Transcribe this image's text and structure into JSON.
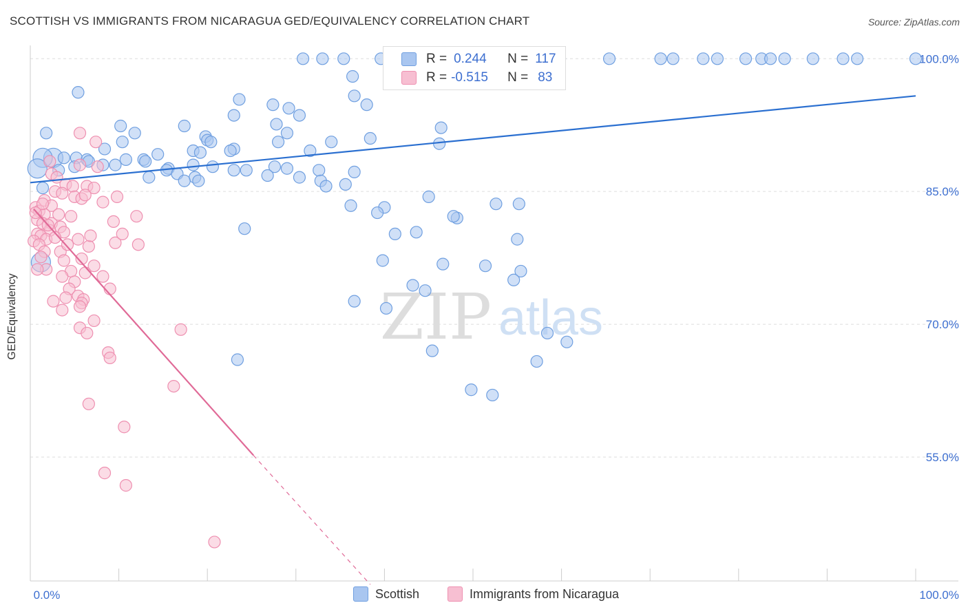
{
  "title": "SCOTTISH VS IMMIGRANTS FROM NICARAGUA GED/EQUIVALENCY CORRELATION CHART",
  "source": "Source: ZipAtlas.com",
  "watermark": {
    "zip": "ZIP",
    "atlas": "atlas"
  },
  "colors": {
    "blue_fill": "#a9c6f0",
    "blue_stroke": "#6f9fe0",
    "blue_line": "#2a6fd0",
    "pink_fill": "#f7bfd2",
    "pink_stroke": "#ee8fb0",
    "pink_line": "#e06a97",
    "tick_label": "#3d6fd0",
    "grid": "#dddddd"
  },
  "legend": {
    "scottish": "Scottish",
    "nicaragua": "Immigrants from Nicaragua"
  },
  "stats": {
    "blue": {
      "r_label": "R =",
      "r_value": "0.244",
      "n_label": "N =",
      "n_value": "117"
    },
    "pink": {
      "r_label": "R =",
      "r_value": "-0.515",
      "n_label": "N =",
      "n_value": "83"
    }
  },
  "chart_data": {
    "type": "scatter",
    "title": "SCOTTISH VS IMMIGRANTS FROM NICARAGUA GED/EQUIVALENCY CORRELATION CHART",
    "xlabel": "",
    "ylabel": "GED/Equivalency",
    "xlim": [
      0,
      100
    ],
    "ylim": [
      41,
      101.5
    ],
    "x_tick_labels": [
      "0.0%",
      "100.0%"
    ],
    "y_ticks": [
      55,
      70,
      85,
      100
    ],
    "y_tick_labels": [
      "55.0%",
      "70.0%",
      "85.0%",
      "100.0%"
    ],
    "grid": true,
    "series": [
      {
        "name": "Scottish",
        "color": "#6f9fe0",
        "trend": {
          "x": [
            0,
            100
          ],
          "y": [
            86.0,
            95.8
          ],
          "style": "solid"
        },
        "points": [
          [
            30.8,
            100.0
          ],
          [
            33.0,
            100.0
          ],
          [
            35.4,
            100.0
          ],
          [
            39.6,
            100.0
          ],
          [
            42.2,
            100.0
          ],
          [
            49.8,
            100.0
          ],
          [
            51.6,
            100.0
          ],
          [
            54.0,
            100.0
          ],
          [
            59.8,
            100.0
          ],
          [
            65.4,
            100.0
          ],
          [
            71.2,
            100.0
          ],
          [
            72.6,
            100.0
          ],
          [
            76.0,
            100.0
          ],
          [
            77.6,
            100.0
          ],
          [
            80.8,
            100.0
          ],
          [
            82.6,
            100.0
          ],
          [
            83.6,
            100.0
          ],
          [
            85.2,
            100.0
          ],
          [
            88.4,
            100.0
          ],
          [
            91.8,
            100.0
          ],
          [
            93.4,
            100.0
          ],
          [
            100.0,
            100.0
          ],
          [
            36.4,
            98.0
          ],
          [
            5.4,
            96.2
          ],
          [
            36.6,
            95.8
          ],
          [
            23.6,
            95.4
          ],
          [
            27.4,
            94.8
          ],
          [
            38.0,
            94.8
          ],
          [
            29.2,
            94.4
          ],
          [
            23.0,
            93.6
          ],
          [
            30.4,
            93.6
          ],
          [
            10.2,
            92.4
          ],
          [
            1.8,
            91.6
          ],
          [
            27.8,
            92.6
          ],
          [
            17.4,
            92.4
          ],
          [
            46.4,
            92.2
          ],
          [
            29.0,
            91.6
          ],
          [
            11.8,
            91.6
          ],
          [
            19.8,
            91.2
          ],
          [
            10.4,
            90.6
          ],
          [
            28.0,
            90.6
          ],
          [
            34.0,
            90.6
          ],
          [
            38.4,
            91.0
          ],
          [
            20.0,
            90.8
          ],
          [
            20.4,
            90.6
          ],
          [
            46.2,
            90.4
          ],
          [
            23.0,
            89.8
          ],
          [
            22.6,
            89.6
          ],
          [
            18.4,
            89.6
          ],
          [
            31.6,
            89.6
          ],
          [
            19.2,
            89.4
          ],
          [
            8.4,
            89.8
          ],
          [
            2.6,
            88.8
          ],
          [
            1.4,
            88.8
          ],
          [
            14.4,
            89.2
          ],
          [
            3.8,
            88.8
          ],
          [
            5.2,
            88.8
          ],
          [
            10.8,
            88.6
          ],
          [
            12.8,
            88.6
          ],
          [
            13.0,
            88.4
          ],
          [
            6.4,
            88.6
          ],
          [
            6.6,
            88.4
          ],
          [
            8.2,
            88.0
          ],
          [
            9.6,
            88.0
          ],
          [
            18.4,
            88.0
          ],
          [
            20.6,
            87.8
          ],
          [
            15.6,
            87.6
          ],
          [
            27.6,
            87.8
          ],
          [
            29.0,
            87.6
          ],
          [
            32.6,
            87.4
          ],
          [
            36.6,
            87.2
          ],
          [
            15.4,
            87.4
          ],
          [
            5.0,
            87.8
          ],
          [
            0.8,
            87.6
          ],
          [
            3.2,
            87.4
          ],
          [
            23.0,
            87.4
          ],
          [
            24.4,
            87.4
          ],
          [
            16.6,
            87.0
          ],
          [
            26.8,
            86.8
          ],
          [
            30.4,
            86.6
          ],
          [
            32.8,
            86.2
          ],
          [
            35.6,
            85.8
          ],
          [
            18.6,
            86.6
          ],
          [
            13.4,
            86.6
          ],
          [
            17.4,
            86.2
          ],
          [
            19.0,
            86.2
          ],
          [
            1.4,
            85.4
          ],
          [
            33.4,
            85.6
          ],
          [
            45.0,
            84.4
          ],
          [
            52.6,
            83.6
          ],
          [
            55.2,
            83.6
          ],
          [
            36.2,
            83.4
          ],
          [
            40.0,
            83.2
          ],
          [
            39.2,
            82.6
          ],
          [
            48.2,
            82.0
          ],
          [
            47.8,
            82.2
          ],
          [
            24.2,
            80.8
          ],
          [
            43.6,
            80.4
          ],
          [
            41.2,
            80.2
          ],
          [
            55.0,
            79.6
          ],
          [
            39.8,
            77.2
          ],
          [
            46.6,
            76.8
          ],
          [
            51.4,
            76.6
          ],
          [
            55.4,
            76.0
          ],
          [
            54.6,
            75.0
          ],
          [
            43.2,
            74.4
          ],
          [
            44.6,
            73.8
          ],
          [
            36.6,
            72.6
          ],
          [
            40.2,
            71.8
          ],
          [
            58.4,
            69.0
          ],
          [
            60.6,
            68.0
          ],
          [
            45.4,
            67.0
          ],
          [
            23.4,
            66.0
          ],
          [
            57.2,
            65.8
          ],
          [
            49.8,
            62.6
          ],
          [
            52.2,
            62.0
          ],
          [
            1.2,
            77.0
          ]
        ]
      },
      {
        "name": "Immigrants from Nicaragua",
        "color": "#ee8fb0",
        "trend": {
          "x": [
            0.4,
            25.2
          ],
          "y": [
            83.0,
            55.2
          ],
          "style": "solid",
          "dashed_extension_to": [
            38.4,
            40.6
          ]
        },
        "points": [
          [
            5.6,
            91.6
          ],
          [
            7.4,
            90.6
          ],
          [
            2.2,
            88.4
          ],
          [
            5.6,
            88.0
          ],
          [
            7.6,
            87.8
          ],
          [
            2.4,
            87.0
          ],
          [
            3.0,
            86.6
          ],
          [
            4.0,
            85.8
          ],
          [
            4.8,
            85.6
          ],
          [
            6.4,
            85.6
          ],
          [
            7.2,
            85.4
          ],
          [
            2.8,
            85.0
          ],
          [
            3.6,
            84.8
          ],
          [
            5.0,
            84.4
          ],
          [
            5.8,
            84.2
          ],
          [
            6.2,
            84.6
          ],
          [
            9.8,
            84.4
          ],
          [
            1.6,
            84.0
          ],
          [
            2.4,
            83.4
          ],
          [
            0.6,
            83.2
          ],
          [
            1.0,
            82.8
          ],
          [
            1.6,
            82.4
          ],
          [
            4.6,
            82.2
          ],
          [
            0.8,
            81.8
          ],
          [
            1.4,
            81.4
          ],
          [
            2.4,
            81.4
          ],
          [
            3.4,
            81.0
          ],
          [
            2.2,
            80.6
          ],
          [
            3.8,
            80.4
          ],
          [
            0.8,
            80.2
          ],
          [
            1.2,
            80.0
          ],
          [
            1.8,
            79.6
          ],
          [
            5.4,
            79.6
          ],
          [
            0.4,
            79.4
          ],
          [
            1.0,
            79.0
          ],
          [
            6.6,
            78.8
          ],
          [
            9.6,
            79.2
          ],
          [
            12.2,
            79.0
          ],
          [
            1.6,
            78.2
          ],
          [
            3.4,
            78.2
          ],
          [
            1.2,
            77.6
          ],
          [
            3.8,
            77.2
          ],
          [
            5.8,
            77.4
          ],
          [
            7.2,
            76.6
          ],
          [
            1.8,
            76.2
          ],
          [
            4.6,
            76.0
          ],
          [
            6.2,
            75.8
          ],
          [
            3.6,
            75.4
          ],
          [
            8.2,
            75.4
          ],
          [
            5.0,
            74.8
          ],
          [
            4.4,
            74.0
          ],
          [
            9.0,
            74.0
          ],
          [
            5.4,
            73.2
          ],
          [
            4.0,
            73.0
          ],
          [
            6.0,
            72.8
          ],
          [
            2.6,
            72.6
          ],
          [
            5.8,
            72.4
          ],
          [
            3.6,
            71.6
          ],
          [
            5.6,
            72.0
          ],
          [
            7.2,
            70.4
          ],
          [
            5.6,
            69.6
          ],
          [
            6.4,
            69.0
          ],
          [
            17.0,
            69.4
          ],
          [
            8.8,
            66.8
          ],
          [
            9.0,
            66.2
          ],
          [
            16.2,
            63.0
          ],
          [
            6.6,
            61.0
          ],
          [
            10.6,
            58.4
          ],
          [
            8.4,
            53.2
          ],
          [
            10.8,
            51.8
          ],
          [
            20.8,
            45.4
          ],
          [
            8.2,
            83.8
          ],
          [
            9.4,
            81.6
          ],
          [
            3.2,
            82.4
          ],
          [
            0.6,
            82.6
          ],
          [
            12.0,
            82.2
          ],
          [
            2.0,
            81.2
          ],
          [
            4.2,
            79.0
          ],
          [
            1.4,
            83.6
          ],
          [
            2.8,
            79.8
          ],
          [
            0.8,
            76.2
          ],
          [
            6.8,
            80.0
          ],
          [
            10.4,
            80.2
          ]
        ]
      }
    ]
  }
}
